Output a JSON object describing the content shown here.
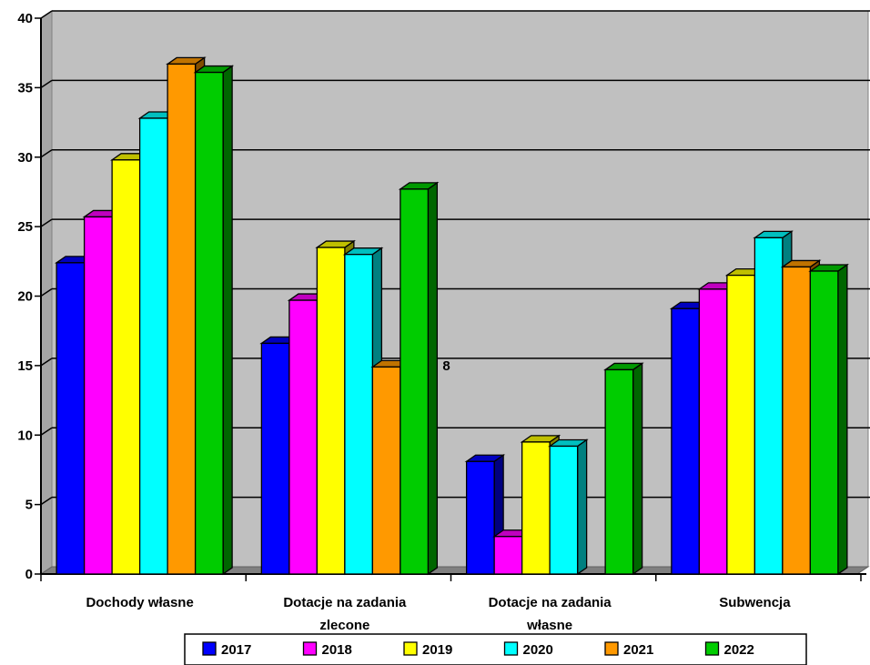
{
  "chart_data": {
    "type": "bar",
    "style": "3d-clustered",
    "categories": [
      "Dochody własne",
      "Dotacje na zadania zlecone",
      "Dotacje na zadania własne",
      "Subwencja"
    ],
    "series": [
      {
        "name": "2017",
        "color": "#0000ff",
        "values": [
          22.4,
          16.6,
          8.1,
          19.1
        ]
      },
      {
        "name": "2018",
        "color": "#ff00ff",
        "values": [
          25.7,
          19.7,
          2.7,
          20.5
        ]
      },
      {
        "name": "2019",
        "color": "#ffff00",
        "values": [
          29.8,
          23.5,
          9.5,
          21.5
        ]
      },
      {
        "name": "2020",
        "color": "#00ffff",
        "values": [
          32.8,
          23.0,
          9.2,
          24.2
        ]
      },
      {
        "name": "2021",
        "color": "#ff9900",
        "values": [
          36.7,
          14.9,
          0,
          22.1
        ]
      },
      {
        "name": "2022",
        "color": "#00cc00",
        "values": [
          36.1,
          27.7,
          14.7,
          21.8
        ]
      }
    ],
    "ylim": [
      0,
      40
    ],
    "yticks": [
      0,
      5,
      10,
      15,
      20,
      25,
      30,
      35,
      40
    ],
    "grid": true,
    "legend_position": "bottom",
    "annotations": [
      "8"
    ],
    "colors": {
      "plot_background": "#c0c0c0",
      "floor": "#808080",
      "gridline": "#000000"
    }
  }
}
